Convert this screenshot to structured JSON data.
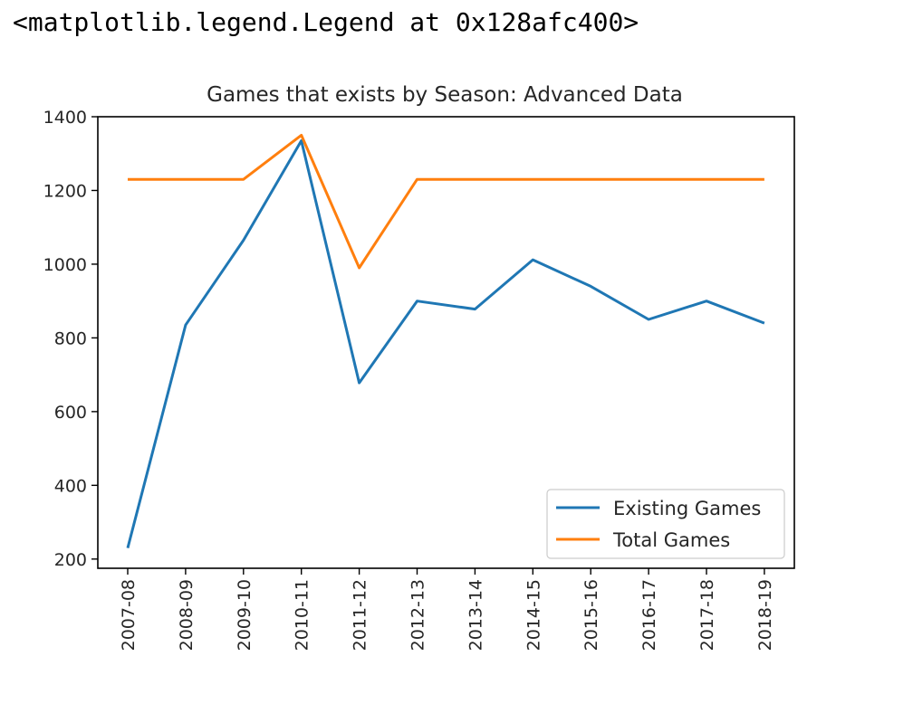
{
  "output_repr": "<matplotlib.legend.Legend at 0x128afc400>",
  "chart_data": {
    "type": "line",
    "title": "Games that exists by Season: Advanced Data",
    "xlabel": "",
    "ylabel": "",
    "categories": [
      "2007-08",
      "2008-09",
      "2009-10",
      "2010-11",
      "2011-12",
      "2012-13",
      "2013-14",
      "2014-15",
      "2015-16",
      "2016-17",
      "2017-18",
      "2018-19"
    ],
    "yticks": [
      200,
      400,
      600,
      800,
      1000,
      1200,
      1400
    ],
    "ylim": [
      175,
      1400
    ],
    "series": [
      {
        "name": "Existing Games",
        "color": "#1f77b4",
        "values": [
          230,
          835,
          1065,
          1335,
          678,
          900,
          878,
          1012,
          940,
          850,
          900,
          840
        ]
      },
      {
        "name": "Total Games",
        "color": "#ff7f0e",
        "values": [
          1230,
          1230,
          1230,
          1350,
          990,
          1230,
          1230,
          1230,
          1230,
          1230,
          1230,
          1230
        ]
      }
    ],
    "legend_position": "lower right",
    "grid": false
  }
}
